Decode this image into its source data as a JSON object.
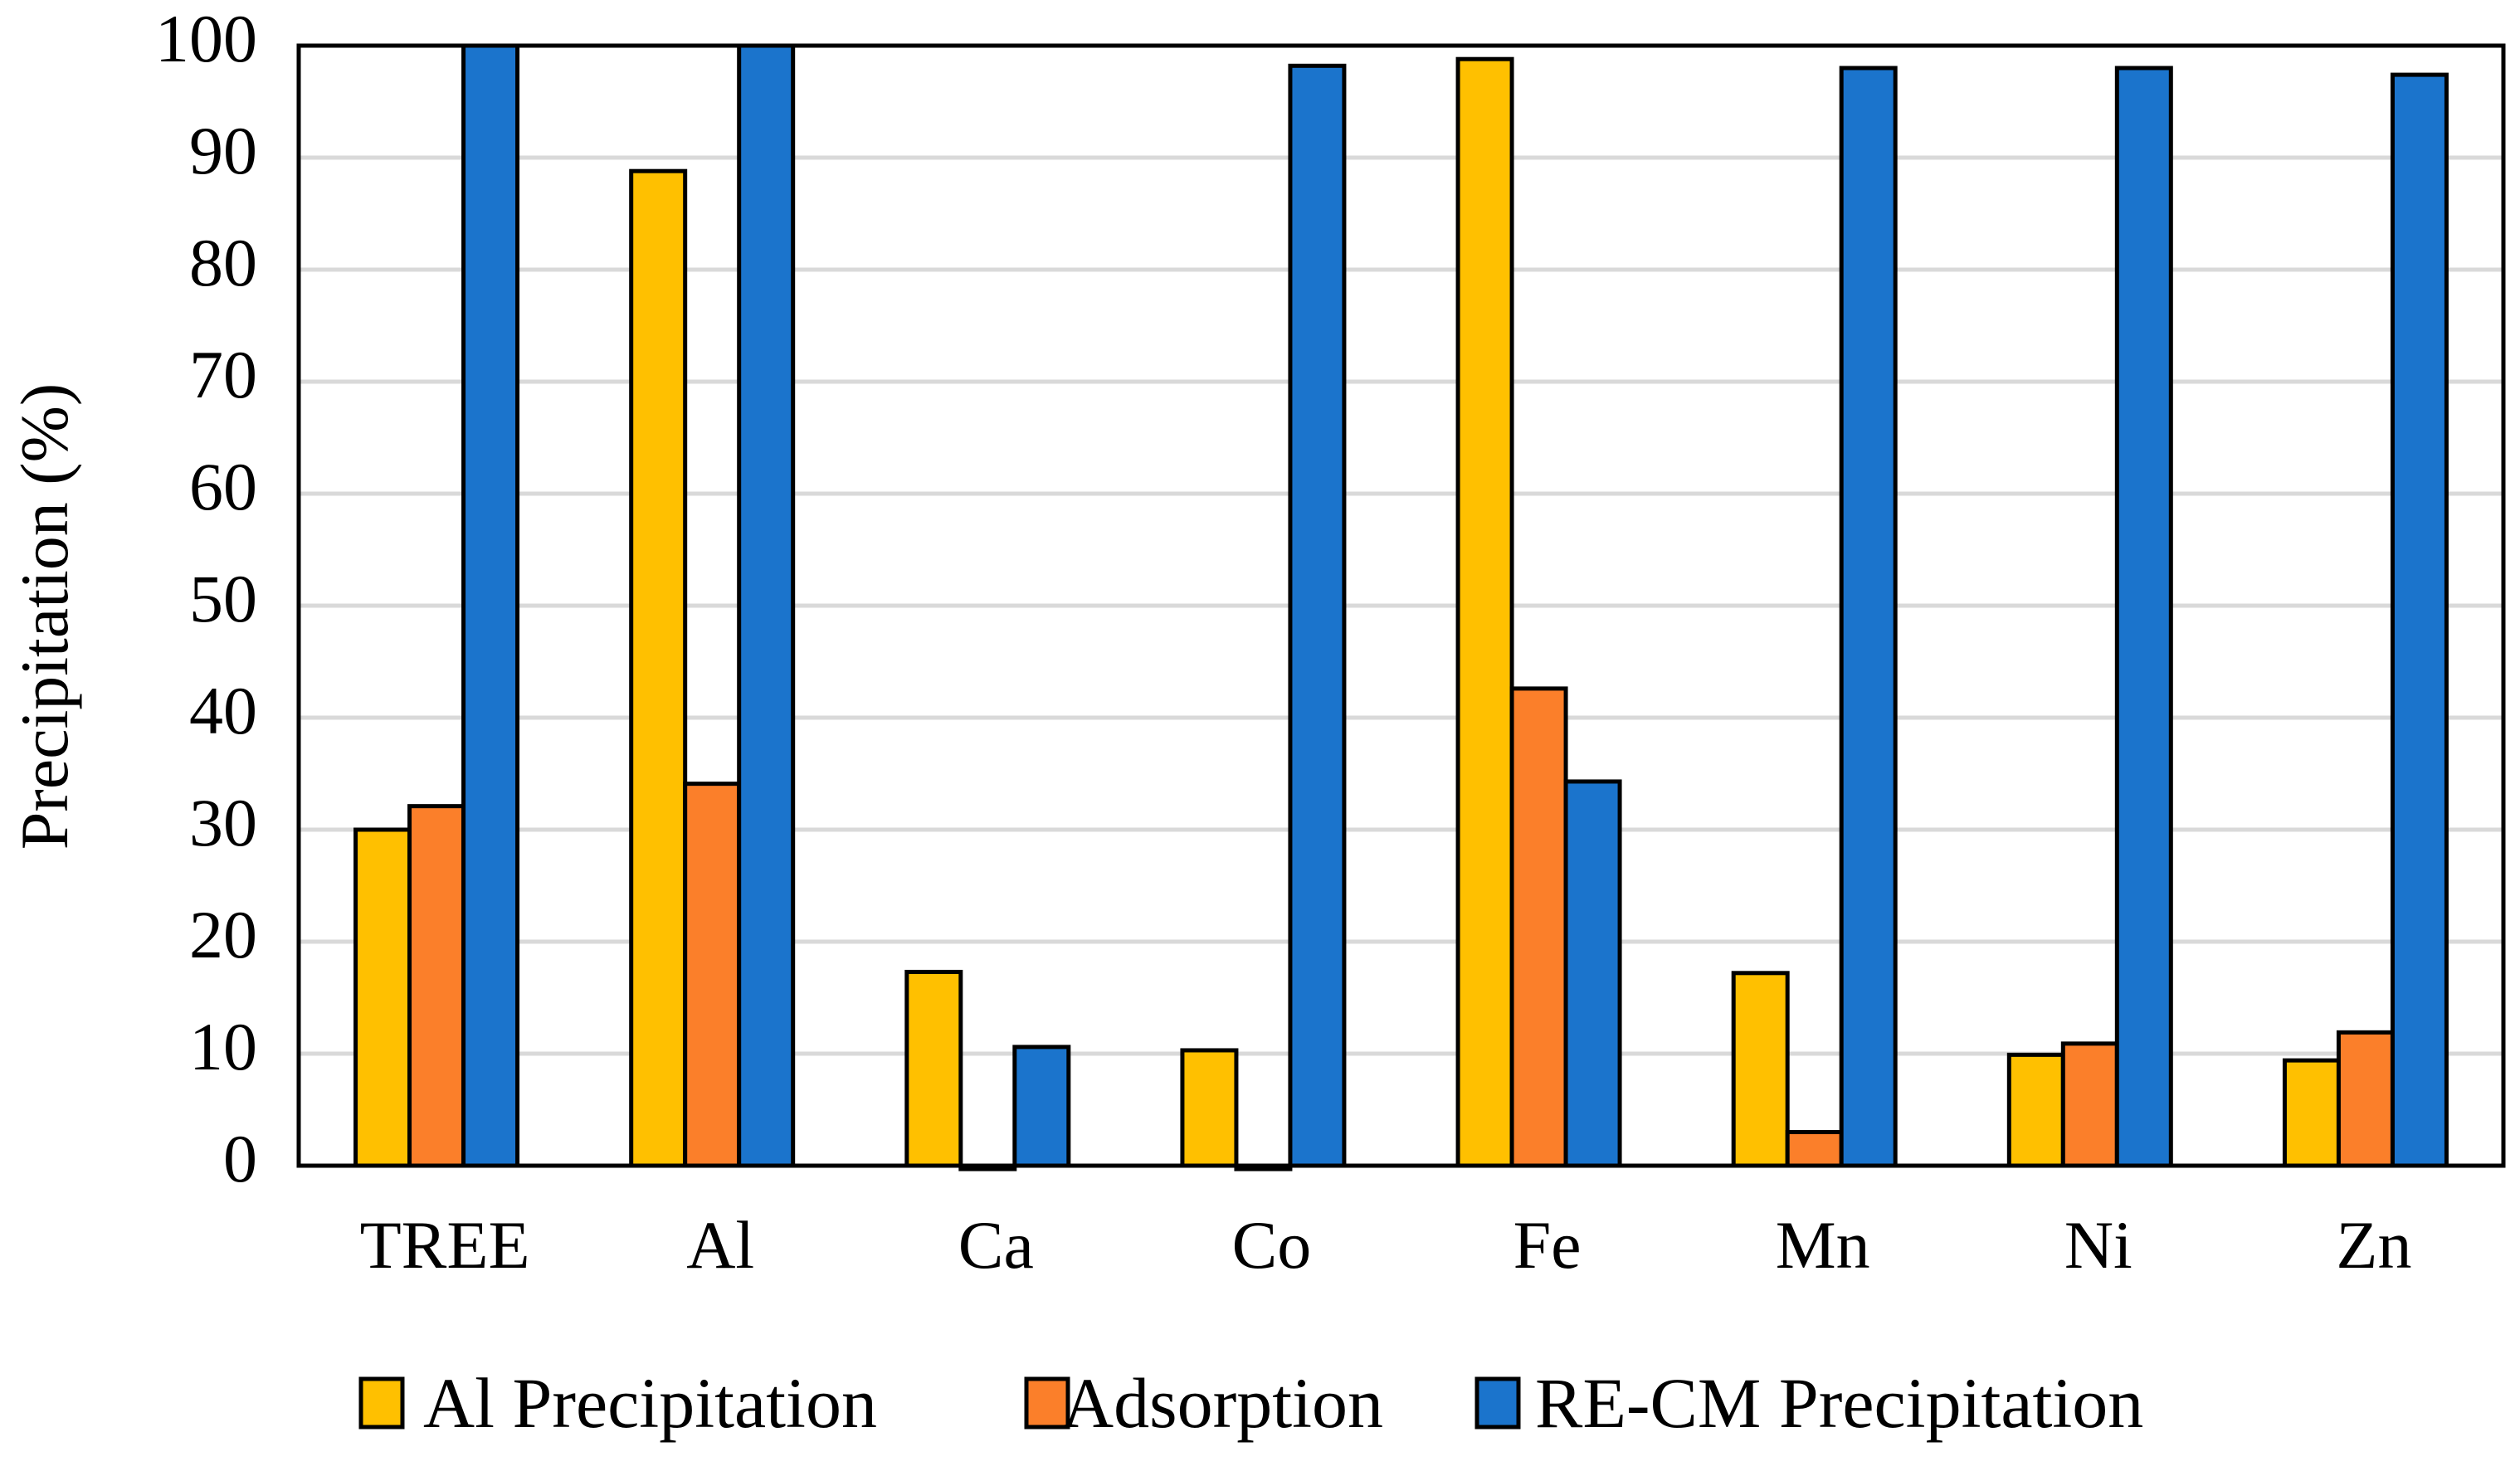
{
  "chart_data": {
    "type": "bar",
    "title": "",
    "xlabel": "",
    "ylabel": "Precipitation (%)",
    "ylim": [
      0,
      100
    ],
    "yticks": [
      0,
      10,
      20,
      30,
      40,
      50,
      60,
      70,
      80,
      90,
      100
    ],
    "yticks_text": [
      "0",
      "10",
      "20",
      "30",
      "40",
      "50",
      "60",
      "70",
      "80",
      "90",
      "100"
    ],
    "grid": true,
    "legend_position": "bottom",
    "categories": [
      "TREE",
      "Al",
      "Ca",
      "Co",
      "Fe",
      "Mn",
      "Ni",
      "Zn"
    ],
    "series": [
      {
        "name": "Al Precipitation",
        "color": "#ffc000",
        "values": [
          30,
          88.8,
          17.3,
          10.3,
          98.8,
          17.2,
          9.9,
          9.4
        ]
      },
      {
        "name": "Adsorption",
        "color": "#fb7f2a",
        "values": [
          32.1,
          34.1,
          -0.3,
          -0.3,
          42.6,
          3,
          10.9,
          11.9
        ]
      },
      {
        "name": "RE-CM Precipitation",
        "color": "#1b74cc",
        "values": [
          100,
          100,
          10.6,
          98.2,
          34.3,
          98,
          98,
          97.4
        ]
      }
    ]
  }
}
